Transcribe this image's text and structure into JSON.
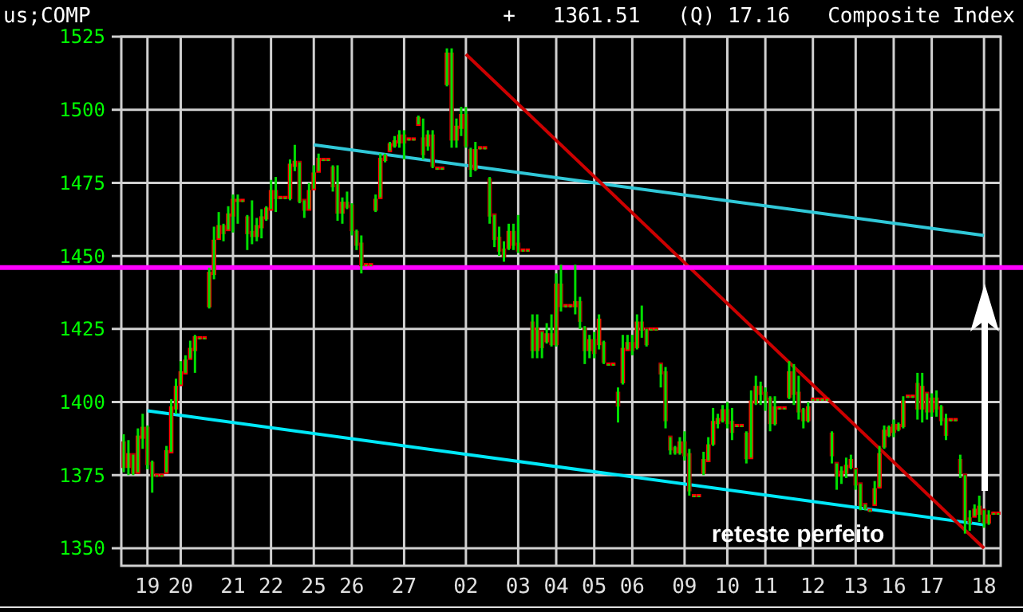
{
  "chart_data": {
    "type": "candlestick",
    "title": "us;COMP",
    "subtitle": "+   1361.51   (Q) 17.16   Composite Index",
    "categories": [
      null,
      null,
      null,
      null,
      null,
      "19",
      null,
      null,
      null,
      null,
      null,
      null,
      "20",
      null,
      null,
      null,
      null,
      null,
      null,
      null,
      null,
      null,
      null,
      "21",
      null,
      null,
      null,
      null,
      null,
      null,
      null,
      "22",
      null,
      null,
      null,
      null,
      null,
      null,
      null,
      null,
      "25",
      null,
      null,
      null,
      null,
      null,
      null,
      null,
      "26",
      null,
      null,
      null,
      null,
      null,
      null,
      null,
      null,
      null,
      null,
      "27",
      null,
      null,
      null,
      null,
      null,
      null,
      null,
      null,
      null,
      null,
      null,
      null,
      "02",
      null,
      null,
      null,
      null,
      null,
      null,
      null,
      null,
      null,
      null,
      "03",
      null,
      null,
      null,
      null,
      null,
      null,
      null,
      "04",
      null,
      null,
      null,
      null,
      null,
      null,
      null,
      "05",
      null,
      null,
      null,
      null,
      null,
      null,
      null,
      "06",
      null,
      null,
      null,
      null,
      null,
      null,
      null,
      null,
      null,
      null,
      "09",
      null,
      null,
      null,
      null,
      null,
      null,
      null,
      null,
      "10",
      null,
      null,
      null,
      null,
      null,
      null,
      null,
      "11",
      null,
      null,
      null,
      null,
      null,
      null,
      null,
      null,
      null,
      "12",
      null,
      null,
      null,
      null,
      null,
      null,
      null,
      null,
      "13",
      null,
      null,
      null,
      null,
      null,
      null,
      null,
      "16",
      null,
      null,
      null,
      null,
      null,
      null,
      null,
      "17",
      null,
      null,
      null,
      null,
      null,
      null,
      null,
      null,
      null,
      null,
      "18",
      null,
      null,
      null
    ],
    "ohlc": [
      [
        1386,
        1389,
        1376,
        1378
      ],
      [
        1378,
        1387,
        1375,
        1382
      ],
      [
        1382,
        1382,
        1375,
        1376
      ],
      [
        1376,
        1391,
        1376,
        1388
      ],
      [
        1388,
        1396,
        1384,
        1391
      ],
      [
        1391,
        1392,
        1377,
        1379
      ],
      [
        1379,
        1380,
        1369,
        1375
      ],
      [
        1375,
        1375,
        1375,
        1375
      ],
      [
        1375,
        1375,
        1375,
        1375
      ],
      [
        1376,
        1385,
        1376,
        1383
      ],
      [
        1383,
        1401,
        1383,
        1398
      ],
      [
        1398,
        1408,
        1396,
        1405
      ],
      [
        1406,
        1414,
        1406,
        1410
      ],
      [
        1410,
        1416,
        1410,
        1414
      ],
      [
        1415,
        1421,
        1415,
        1418
      ],
      [
        1418,
        1423,
        1410,
        1422
      ],
      [
        1422,
        1422,
        1422,
        1422
      ],
      [
        1422,
        1422,
        1422,
        1422
      ],
      [
        1433,
        1446,
        1432,
        1444
      ],
      [
        1444,
        1460,
        1442,
        1455
      ],
      [
        1456,
        1465,
        1456,
        1460
      ],
      [
        1460,
        1461,
        1455,
        1458
      ],
      [
        1459,
        1467,
        1459,
        1464
      ],
      [
        1464,
        1471,
        1458,
        1469
      ],
      [
        1469,
        1471,
        1461,
        1469
      ],
      [
        1469,
        1469,
        1469,
        1469
      ],
      [
        1463,
        1464,
        1452,
        1458
      ],
      [
        1458,
        1469,
        1454,
        1457
      ],
      [
        1457,
        1463,
        1455,
        1460
      ],
      [
        1460,
        1466,
        1456,
        1463
      ],
      [
        1463,
        1467,
        1462,
        1466
      ],
      [
        1466,
        1476,
        1466,
        1472
      ],
      [
        1472,
        1477,
        1465,
        1470
      ],
      [
        1470,
        1470,
        1470,
        1470
      ],
      [
        1470,
        1470,
        1470,
        1470
      ],
      [
        1470,
        1483,
        1469,
        1481
      ],
      [
        1481,
        1488,
        1479,
        1482
      ],
      [
        1482,
        1482,
        1468,
        1469
      ],
      [
        1469,
        1469,
        1463,
        1466
      ],
      [
        1466,
        1475,
        1466,
        1472
      ],
      [
        1473,
        1481,
        1473,
        1478
      ],
      [
        1479,
        1485,
        1479,
        1483
      ],
      [
        1483,
        1483,
        1483,
        1483
      ],
      [
        1483,
        1483,
        1483,
        1483
      ],
      [
        1480,
        1481,
        1472,
        1474
      ],
      [
        1474,
        1481,
        1462,
        1465
      ],
      [
        1465,
        1470,
        1461,
        1468
      ],
      [
        1468,
        1472,
        1466,
        1467
      ],
      [
        1467,
        1468,
        1457,
        1459
      ],
      [
        1458,
        1459,
        1452,
        1454
      ],
      [
        1454,
        1457,
        1444,
        1447
      ],
      [
        1447,
        1447,
        1447,
        1447
      ],
      [
        1447,
        1447,
        1447,
        1447
      ],
      [
        1466,
        1471,
        1465,
        1469
      ],
      [
        1470,
        1485,
        1470,
        1483
      ],
      [
        1483,
        1485,
        1482,
        1484
      ],
      [
        1486,
        1489,
        1486,
        1488
      ],
      [
        1488,
        1491,
        1487,
        1489
      ],
      [
        1489,
        1493,
        1487,
        1491
      ],
      [
        1491,
        1493,
        1483,
        1489
      ],
      [
        1490,
        1490,
        1490,
        1490
      ],
      [
        1490,
        1490,
        1490,
        1490
      ],
      [
        1495,
        1498,
        1495,
        1497
      ],
      [
        1490,
        1497,
        1483,
        1485
      ],
      [
        1488,
        1493,
        1486,
        1491
      ],
      [
        1491,
        1493,
        1480,
        1481
      ],
      [
        1480,
        1480,
        1480,
        1480
      ],
      [
        1480,
        1480,
        1480,
        1480
      ],
      [
        1509,
        1521,
        1508,
        1519
      ],
      [
        1519,
        1521,
        1487,
        1490
      ],
      [
        1490,
        1497,
        1487,
        1494
      ],
      [
        1494,
        1501,
        1491,
        1498
      ],
      [
        1498,
        1501,
        1487,
        1488
      ],
      [
        1486,
        1487,
        1477,
        1480
      ],
      [
        1480,
        1489,
        1479,
        1486
      ],
      [
        1487,
        1487,
        1487,
        1487
      ],
      [
        1487,
        1487,
        1487,
        1487
      ],
      [
        1476,
        1477,
        1461,
        1464
      ],
      [
        1464,
        1464,
        1453,
        1456
      ],
      [
        1456,
        1460,
        1450,
        1452
      ],
      [
        1452,
        1455,
        1448,
        1450
      ],
      [
        1453,
        1461,
        1452,
        1458
      ],
      [
        1458,
        1461,
        1452,
        1454
      ],
      [
        1454,
        1464,
        1451,
        1452
      ],
      [
        1452,
        1452,
        1452,
        1452
      ],
      [
        1452,
        1452,
        1452,
        1452
      ],
      [
        1427,
        1430,
        1415,
        1418
      ],
      [
        1418,
        1430,
        1415,
        1425
      ],
      [
        1424,
        1424,
        1415,
        1419
      ],
      [
        1421,
        1427,
        1420,
        1423
      ],
      [
        1423,
        1430,
        1419,
        1420
      ],
      [
        1420,
        1444,
        1419,
        1440
      ],
      [
        1440,
        1447,
        1431,
        1433
      ],
      [
        1433,
        1433,
        1433,
        1433
      ],
      [
        1433,
        1433,
        1433,
        1433
      ],
      [
        1433,
        1447,
        1430,
        1434
      ],
      [
        1434,
        1436,
        1425,
        1428
      ],
      [
        1425,
        1426,
        1413,
        1418
      ],
      [
        1418,
        1423,
        1415,
        1421
      ],
      [
        1421,
        1424,
        1415,
        1417
      ],
      [
        1420,
        1430,
        1418,
        1428
      ],
      [
        1420,
        1421,
        1413,
        1414
      ],
      [
        1413,
        1413,
        1413,
        1413
      ],
      [
        1413,
        1413,
        1413,
        1413
      ],
      [
        1403,
        1405,
        1393,
        1399
      ],
      [
        1407,
        1423,
        1406,
        1418
      ],
      [
        1418,
        1423,
        1418,
        1420
      ],
      [
        1420,
        1423,
        1416,
        1418
      ],
      [
        1419,
        1430,
        1418,
        1427
      ],
      [
        1427,
        1433,
        1422,
        1425
      ],
      [
        1425,
        1425,
        1419,
        1420
      ],
      [
        1425,
        1425,
        1425,
        1425
      ],
      [
        1425,
        1425,
        1425,
        1425
      ],
      [
        1413,
        1413,
        1405,
        1410
      ],
      [
        1410,
        1412,
        1391,
        1394
      ],
      [
        1388,
        1388,
        1382,
        1384
      ],
      [
        1384,
        1385,
        1382,
        1383
      ],
      [
        1383,
        1388,
        1382,
        1386
      ],
      [
        1386,
        1390,
        1380,
        1382
      ],
      [
        1382,
        1384,
        1368,
        1370
      ],
      [
        1368,
        1368,
        1368,
        1368
      ],
      [
        1368,
        1368,
        1368,
        1368
      ],
      [
        1376,
        1383,
        1375,
        1380
      ],
      [
        1380,
        1388,
        1380,
        1385
      ],
      [
        1386,
        1398,
        1385,
        1393
      ],
      [
        1393,
        1396,
        1391,
        1394
      ],
      [
        1394,
        1399,
        1393,
        1397
      ],
      [
        1397,
        1400,
        1391,
        1393
      ],
      [
        1393,
        1398,
        1387,
        1390
      ],
      [
        1392,
        1392,
        1392,
        1392
      ],
      [
        1392,
        1392,
        1392,
        1392
      ],
      [
        1389,
        1390,
        1379,
        1381
      ],
      [
        1381,
        1404,
        1381,
        1400
      ],
      [
        1400,
        1409,
        1399,
        1405
      ],
      [
        1405,
        1407,
        1399,
        1403
      ],
      [
        1403,
        1405,
        1397,
        1401
      ],
      [
        1401,
        1402,
        1390,
        1393
      ],
      [
        1393,
        1402,
        1392,
        1398
      ],
      [
        1398,
        1398,
        1398,
        1398
      ],
      [
        1398,
        1398,
        1398,
        1398
      ],
      [
        1402,
        1414,
        1401,
        1410
      ],
      [
        1410,
        1413,
        1399,
        1403
      ],
      [
        1403,
        1409,
        1394,
        1397
      ],
      [
        1397,
        1398,
        1391,
        1394
      ],
      [
        1394,
        1400,
        1393,
        1398
      ],
      [
        1401,
        1401,
        1401,
        1401
      ],
      [
        1401,
        1401,
        1401,
        1401
      ],
      [
        1401,
        1401,
        1401,
        1401
      ],
      [
        1401,
        1401,
        1401,
        1401
      ],
      [
        1389,
        1390,
        1379,
        1382
      ],
      [
        1379,
        1379,
        1370,
        1375
      ],
      [
        1375,
        1378,
        1372,
        1376
      ],
      [
        1376,
        1381,
        1374,
        1378
      ],
      [
        1378,
        1382,
        1377,
        1380
      ],
      [
        1377,
        1377,
        1370,
        1372
      ],
      [
        1372,
        1372,
        1363,
        1365
      ],
      [
        1365,
        1365,
        1363,
        1364
      ],
      [
        1363,
        1363,
        1363,
        1363
      ],
      [
        1365,
        1373,
        1365,
        1370
      ],
      [
        1371,
        1385,
        1371,
        1382
      ],
      [
        1385,
        1392,
        1384,
        1390
      ],
      [
        1389,
        1392,
        1388,
        1391
      ],
      [
        1390,
        1394,
        1388,
        1392
      ],
      [
        1391,
        1393,
        1390,
        1392
      ],
      [
        1392,
        1402,
        1391,
        1400
      ],
      [
        1402,
        1402,
        1402,
        1402
      ],
      [
        1402,
        1402,
        1402,
        1402
      ],
      [
        1406,
        1410,
        1394,
        1398
      ],
      [
        1398,
        1410,
        1393,
        1405
      ],
      [
        1403,
        1403,
        1394,
        1397
      ],
      [
        1397,
        1403,
        1395,
        1401
      ],
      [
        1401,
        1404,
        1395,
        1398
      ],
      [
        1398,
        1399,
        1392,
        1394
      ],
      [
        1394,
        1396,
        1387,
        1389
      ],
      [
        1394,
        1394,
        1394,
        1394
      ],
      [
        1394,
        1394,
        1394,
        1394
      ],
      [
        1380,
        1382,
        1374,
        1376
      ],
      [
        1375,
        1375,
        1355,
        1360
      ],
      [
        1360,
        1363,
        1356,
        1359
      ],
      [
        1361,
        1365,
        1361,
        1363
      ],
      [
        1362,
        1368,
        1359,
        1364
      ],
      [
        1363,
        1363,
        1357,
        1359
      ],
      [
        1359,
        1363,
        1358,
        1361
      ],
      [
        1362,
        1362,
        1362,
        1362
      ],
      [
        1362,
        1362,
        1362,
        1362
      ]
    ],
    "series": [
      {
        "type": "line",
        "color": "#30c8d8",
        "x": [
          "25",
          "18"
        ],
        "values": [
          1488,
          1457
        ]
      },
      {
        "type": "line",
        "color": "#00e8f8",
        "x": [
          "19",
          "18"
        ],
        "values": [
          1397,
          1358
        ]
      },
      {
        "type": "line",
        "color": "#cc0000",
        "x": [
          "02",
          "18"
        ],
        "values": [
          1519,
          1350
        ]
      }
    ],
    "ref_lines": [
      {
        "axis": "y",
        "value": 1446,
        "color": "#ff00ff"
      }
    ],
    "annotations": [
      "reteste perfeito"
    ],
    "ylim": [
      1344,
      1525
    ],
    "yticks": [
      1350,
      1375,
      1400,
      1425,
      1450,
      1475,
      1500,
      1525
    ],
    "grid": true
  }
}
